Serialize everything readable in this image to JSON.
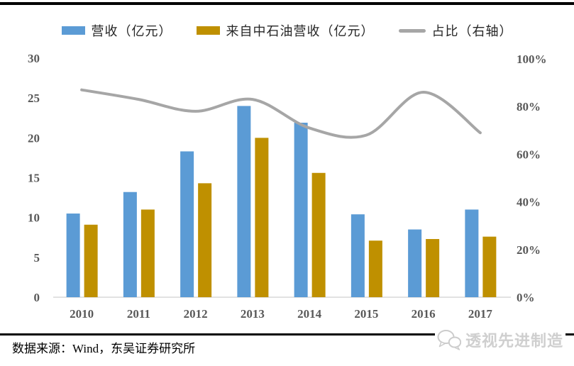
{
  "legend": {
    "items": [
      {
        "label": "营收（亿元）",
        "color": "#5B9BD5",
        "marker": "bar"
      },
      {
        "label": "来自中石油营收（亿元）",
        "color": "#BF9000",
        "marker": "bar"
      },
      {
        "label": "占比（右轴）",
        "color": "#A6A6A6",
        "marker": "line"
      }
    ]
  },
  "chart_data": {
    "type": "bar",
    "subtype": "combo-bar-line",
    "categories": [
      "2010",
      "2011",
      "2012",
      "2013",
      "2014",
      "2015",
      "2016",
      "2017"
    ],
    "series": [
      {
        "name": "营收（亿元）",
        "type": "bar",
        "axis": "left",
        "color": "#5B9BD5",
        "values": [
          10.5,
          13.2,
          18.3,
          24.0,
          21.9,
          10.4,
          8.5,
          11.0
        ]
      },
      {
        "name": "来自中石油营收（亿元）",
        "type": "bar",
        "axis": "left",
        "color": "#BF9000",
        "values": [
          9.1,
          11.0,
          14.3,
          20.0,
          15.6,
          7.1,
          7.3,
          7.6
        ]
      },
      {
        "name": "占比（右轴）",
        "type": "line",
        "axis": "right",
        "color": "#A6A6A6",
        "smooth": true,
        "values": [
          87,
          83,
          78,
          83,
          71,
          68,
          86,
          69
        ]
      }
    ],
    "left_axis": {
      "min": 0,
      "max": 30,
      "step": 5,
      "tick_labels": [
        "0",
        "5",
        "10",
        "15",
        "20",
        "25",
        "30"
      ]
    },
    "right_axis": {
      "min": 0,
      "max": 100,
      "step": 20,
      "tick_labels": [
        "0%",
        "20%",
        "40%",
        "60%",
        "80%",
        "100%"
      ]
    },
    "grid": false,
    "legend_position": "top",
    "tick_color": "#595959",
    "baseline_color": "#D9D9D9"
  },
  "footer": {
    "source": "数据来源：Wind，东吴证券研究所",
    "watermark_text": "透视先进制造"
  }
}
